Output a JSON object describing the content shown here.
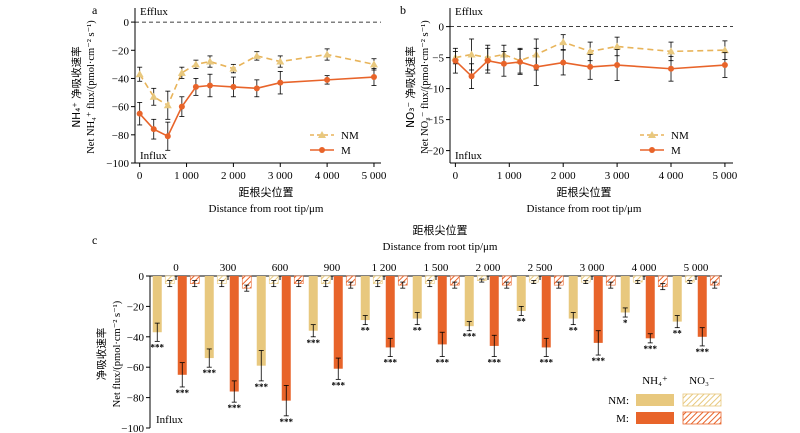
{
  "colors": {
    "nm": "#e8c87e",
    "nm_line": "#e8b45a",
    "m": "#e8642a",
    "axis": "#000000"
  },
  "chart_data": [
    {
      "panel": "a",
      "type": "line",
      "annot_top": "Efflux",
      "annot_bottom": "Influx",
      "xlabel_zh": "距根尖位置",
      "xlabel_en": "Distance from root tip/μm",
      "ylabel_zh": "NH₄⁺ 净吸收速率",
      "ylabel_en": "Net NH₄⁺ flux/(pmol·cm⁻² s⁻¹)",
      "xlim": [
        -100,
        5150
      ],
      "ylim": [
        -100,
        10
      ],
      "xticks": [
        0,
        1000,
        2000,
        3000,
        4000,
        5000
      ],
      "xtick_labels": [
        "0",
        "1 000",
        "2 000",
        "3 000",
        "4 000",
        "5 000"
      ],
      "yticks": [
        0,
        -20,
        -40,
        -60,
        -80,
        -100
      ],
      "ytick_labels": [
        "0",
        "−20",
        "−40",
        "−60",
        "−80",
        "−100"
      ],
      "x": [
        0,
        300,
        600,
        900,
        1200,
        1500,
        2000,
        2500,
        3000,
        4000,
        5000
      ],
      "series": [
        {
          "name": "NM",
          "key": "nm",
          "style": "dashed",
          "marker": "triangle",
          "values": [
            -37,
            -53,
            -59,
            -36,
            -30,
            -28,
            -33,
            -24,
            -28,
            -23,
            -30
          ],
          "errors": [
            5,
            6,
            10,
            4,
            3,
            4,
            3,
            3,
            4,
            4,
            4
          ]
        },
        {
          "name": "M",
          "key": "m",
          "style": "solid",
          "marker": "circle",
          "values": [
            -65,
            -76,
            -81,
            -60,
            -46,
            -45,
            -46,
            -47,
            -43,
            -41,
            -39
          ],
          "errors": [
            8,
            7,
            10,
            7,
            6,
            8,
            7,
            6,
            8,
            3,
            6
          ]
        }
      ],
      "legend": "bottom-right"
    },
    {
      "panel": "b",
      "type": "line",
      "annot_top": "Efflux",
      "annot_bottom": "Influx",
      "xlabel_zh": "距根尖位置",
      "xlabel_en": "Distance from root tip/μm",
      "ylabel_zh": "NO₃⁻ 净吸收速率",
      "ylabel_en": "Net NO₃⁻ flux/(pmol·cm⁻² s⁻¹)",
      "xlim": [
        -100,
        5150
      ],
      "ylim": [
        -22,
        3
      ],
      "xticks": [
        0,
        1000,
        2000,
        3000,
        4000,
        5000
      ],
      "xtick_labels": [
        "0",
        "1 000",
        "2 000",
        "3 000",
        "4 000",
        "5 000"
      ],
      "yticks": [
        0,
        -5,
        -10,
        -15,
        -20
      ],
      "ytick_labels": [
        "0",
        "−5",
        "−10",
        "−15",
        "−20"
      ],
      "x": [
        0,
        300,
        600,
        900,
        1200,
        1500,
        2000,
        2500,
        3000,
        4000,
        5000
      ],
      "series": [
        {
          "name": "NM",
          "key": "nm",
          "style": "dashed",
          "marker": "triangle",
          "values": [
            -5.0,
            -4.5,
            -5.0,
            -4.5,
            -5.5,
            -4.5,
            -2.5,
            -4.0,
            -3.2,
            -4.0,
            -3.8
          ],
          "errors": [
            1.0,
            2.5,
            2.0,
            1.5,
            2.0,
            2.5,
            1.2,
            1.5,
            1.5,
            1.5,
            1.5
          ]
        },
        {
          "name": "M",
          "key": "m",
          "style": "solid",
          "marker": "circle",
          "values": [
            -5.5,
            -8.0,
            -5.5,
            -6.0,
            -5.7,
            -6.5,
            -5.8,
            -6.5,
            -6.2,
            -6.8,
            -6.2
          ],
          "errors": [
            2.0,
            2.0,
            2.0,
            2.0,
            2.0,
            3.0,
            2.0,
            2.0,
            2.5,
            2.0,
            2.0
          ]
        }
      ],
      "legend": "bottom-right"
    },
    {
      "panel": "c",
      "type": "bar",
      "annot_bottom": "Influx",
      "top_label_zh": "距根尖位置",
      "top_label_en": "Distance from root tip/μm",
      "ylabel_zh": "净吸收速率",
      "ylabel_en": "Net flux/(pmol·cm⁻² s⁻¹)",
      "ylim": [
        -100,
        0
      ],
      "yticks": [
        0,
        -20,
        -40,
        -60,
        -80,
        -100
      ],
      "ytick_labels": [
        "0",
        "−20",
        "−40",
        "−60",
        "−80",
        "−100"
      ],
      "categories": [
        "0",
        "300",
        "600",
        "900",
        "1 200",
        "1 500",
        "2 000",
        "2 500",
        "3 000",
        "4 000",
        "5 000"
      ],
      "series": [
        {
          "name": "NM: NH₄⁺",
          "key": "nm",
          "fill": "solid",
          "values": [
            -37,
            -54,
            -59,
            -36,
            -29,
            -28,
            -33,
            -23,
            -28,
            -24,
            -30
          ],
          "errors": [
            6,
            6,
            10,
            4,
            3,
            4,
            3,
            3,
            4,
            3,
            4
          ]
        },
        {
          "name": "NM: NO₃⁻",
          "key": "nm",
          "fill": "hatch",
          "values": [
            -5,
            -5,
            -5,
            -5,
            -5,
            -5,
            -3,
            -4,
            -4,
            -4,
            -4
          ],
          "errors": [
            2,
            2,
            2,
            2,
            2,
            2,
            1,
            1,
            1,
            1,
            1
          ]
        },
        {
          "name": "M: NH₄⁺",
          "key": "m",
          "fill": "solid",
          "values": [
            -65,
            -76,
            -82,
            -61,
            -47,
            -45,
            -46,
            -47,
            -44,
            -41,
            -40
          ],
          "errors": [
            8,
            7,
            10,
            7,
            6,
            8,
            7,
            6,
            8,
            3,
            6
          ]
        },
        {
          "name": "M: NO₃⁻",
          "key": "m",
          "fill": "hatch",
          "values": [
            -5,
            -8,
            -5,
            -6,
            -6,
            -6,
            -6,
            -6,
            -6,
            -7,
            -6
          ],
          "errors": [
            2,
            2,
            2,
            2,
            2,
            2,
            2,
            2,
            2,
            2,
            2
          ]
        }
      ],
      "significance_nm": [
        "***",
        "***",
        "***",
        "***",
        "**",
        "**",
        "***",
        "**",
        "**",
        "*",
        "**"
      ],
      "significance_m": [
        "***",
        "***",
        "***",
        "***",
        "***",
        "***",
        "***",
        "***",
        "***",
        "***",
        "***"
      ],
      "legend": {
        "col1": "NH₄⁺",
        "col2": "NO₃⁻",
        "row1": "NM:",
        "row2": "M:"
      }
    }
  ]
}
